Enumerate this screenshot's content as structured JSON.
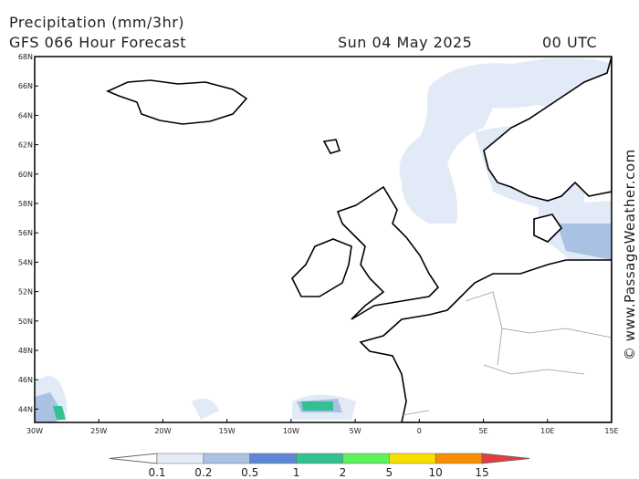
{
  "header": {
    "title": "Precipitation (mm/3hr)",
    "subtitle": "GFS 066 Hour Forecast",
    "date": "Sun 04 May 2025",
    "time": "00 UTC"
  },
  "map": {
    "lat_labels": [
      "68N",
      "66N",
      "64N",
      "62N",
      "60N",
      "58N",
      "56N",
      "54N",
      "52N",
      "50N",
      "48N",
      "46N",
      "44N"
    ],
    "lon_labels": [
      "30W",
      "25W",
      "20W",
      "15W",
      "10W",
      "5W",
      "0",
      "5E",
      "10E",
      "15E"
    ]
  },
  "colorbar": {
    "labels": [
      "0.1",
      "0.2",
      "0.5",
      "1",
      "2",
      "5",
      "10",
      "15"
    ],
    "colors": [
      "#ffffff",
      "#e4ecf8",
      "#a9c1e3",
      "#5d86d4",
      "#33c191",
      "#5ef25e",
      "#f7df00",
      "#f78d00",
      "#e53c3c"
    ]
  },
  "credit": "© www.PassageWeather.com"
}
